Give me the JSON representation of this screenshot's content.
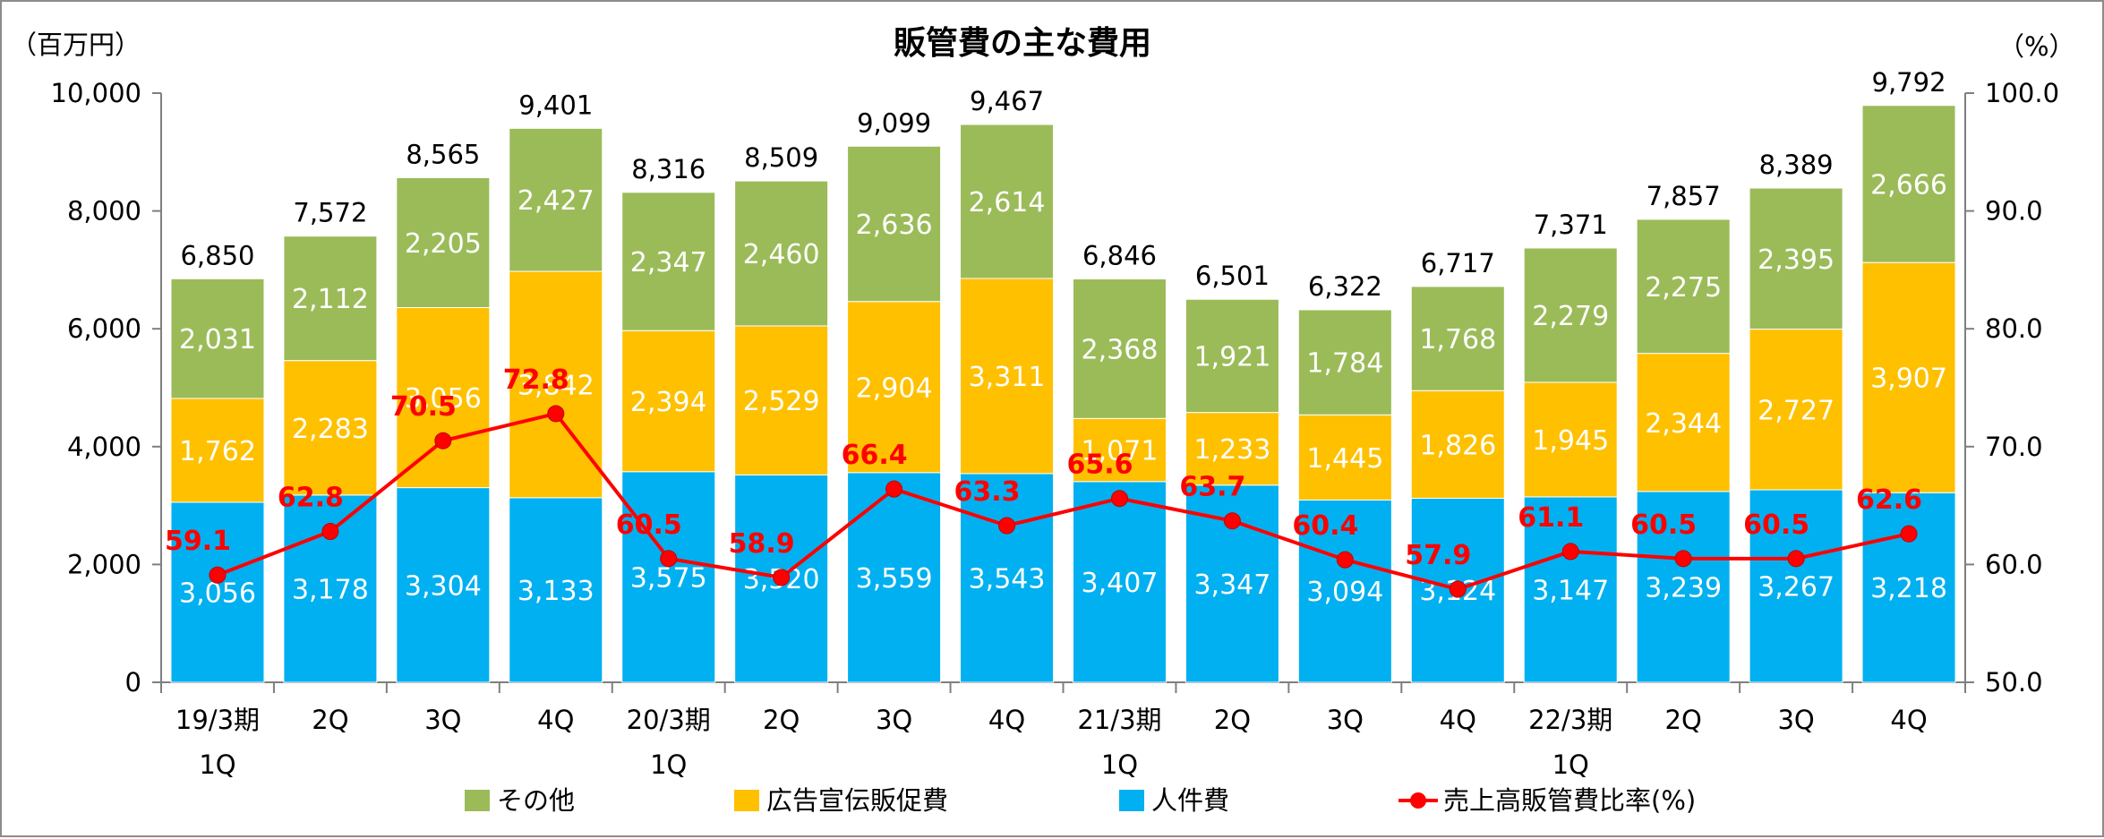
{
  "chart_data": {
    "type": "bar",
    "stacked": true,
    "title": "販管費の主な費用",
    "left_unit": "（百万円）",
    "right_unit": "（%）",
    "ylim": [
      0,
      10000
    ],
    "y2lim": [
      50.0,
      100.0
    ],
    "yticks": [
      "0",
      "2,000",
      "4,000",
      "6,000",
      "8,000",
      "10,000"
    ],
    "y2ticks": [
      "50.0",
      "60.0",
      "70.0",
      "80.0",
      "90.0",
      "100.0"
    ],
    "categories": [
      [
        "19/3期",
        "1Q"
      ],
      [
        "2Q"
      ],
      [
        "3Q"
      ],
      [
        "4Q"
      ],
      [
        "20/3期",
        "1Q"
      ],
      [
        "2Q"
      ],
      [
        "3Q"
      ],
      [
        "4Q"
      ],
      [
        "21/3期",
        "1Q"
      ],
      [
        "2Q"
      ],
      [
        "3Q"
      ],
      [
        "4Q"
      ],
      [
        "22/3期",
        "1Q"
      ],
      [
        "2Q"
      ],
      [
        "3Q"
      ],
      [
        "4Q"
      ]
    ],
    "series": [
      {
        "name": "人件費",
        "color": "#00b0f0",
        "values": [
          3056,
          3178,
          3304,
          3133,
          3575,
          3520,
          3559,
          3543,
          3407,
          3347,
          3094,
          3124,
          3147,
          3239,
          3267,
          3218
        ]
      },
      {
        "name": "広告宣伝販促費",
        "color": "#ffc000",
        "values": [
          1762,
          2283,
          3056,
          3842,
          2394,
          2529,
          2904,
          3311,
          1071,
          1233,
          1445,
          1826,
          1945,
          2344,
          2727,
          3907
        ]
      },
      {
        "name": "その他",
        "color": "#9bbb59",
        "values": [
          2031,
          2112,
          2205,
          2427,
          2347,
          2460,
          2636,
          2614,
          2368,
          1921,
          1784,
          1768,
          2279,
          2275,
          2395,
          2666
        ]
      }
    ],
    "totals": [
      6850,
      7572,
      8565,
      9401,
      8316,
      8509,
      9099,
      9467,
      6846,
      6501,
      6322,
      6717,
      7371,
      7857,
      8389,
      9792
    ],
    "line_series": {
      "name": "売上高販管費比率(%)",
      "color": "#ff0000",
      "axis": "right",
      "values": [
        59.1,
        62.8,
        70.5,
        72.8,
        60.5,
        58.9,
        66.4,
        63.3,
        65.6,
        63.7,
        60.4,
        57.9,
        61.1,
        60.5,
        60.5,
        62.6
      ]
    },
    "legend": [
      "その他",
      "広告宣伝販促費",
      "人件費",
      "売上高販管費比率(%)"
    ],
    "legend_position": "bottom",
    "grid": false
  }
}
